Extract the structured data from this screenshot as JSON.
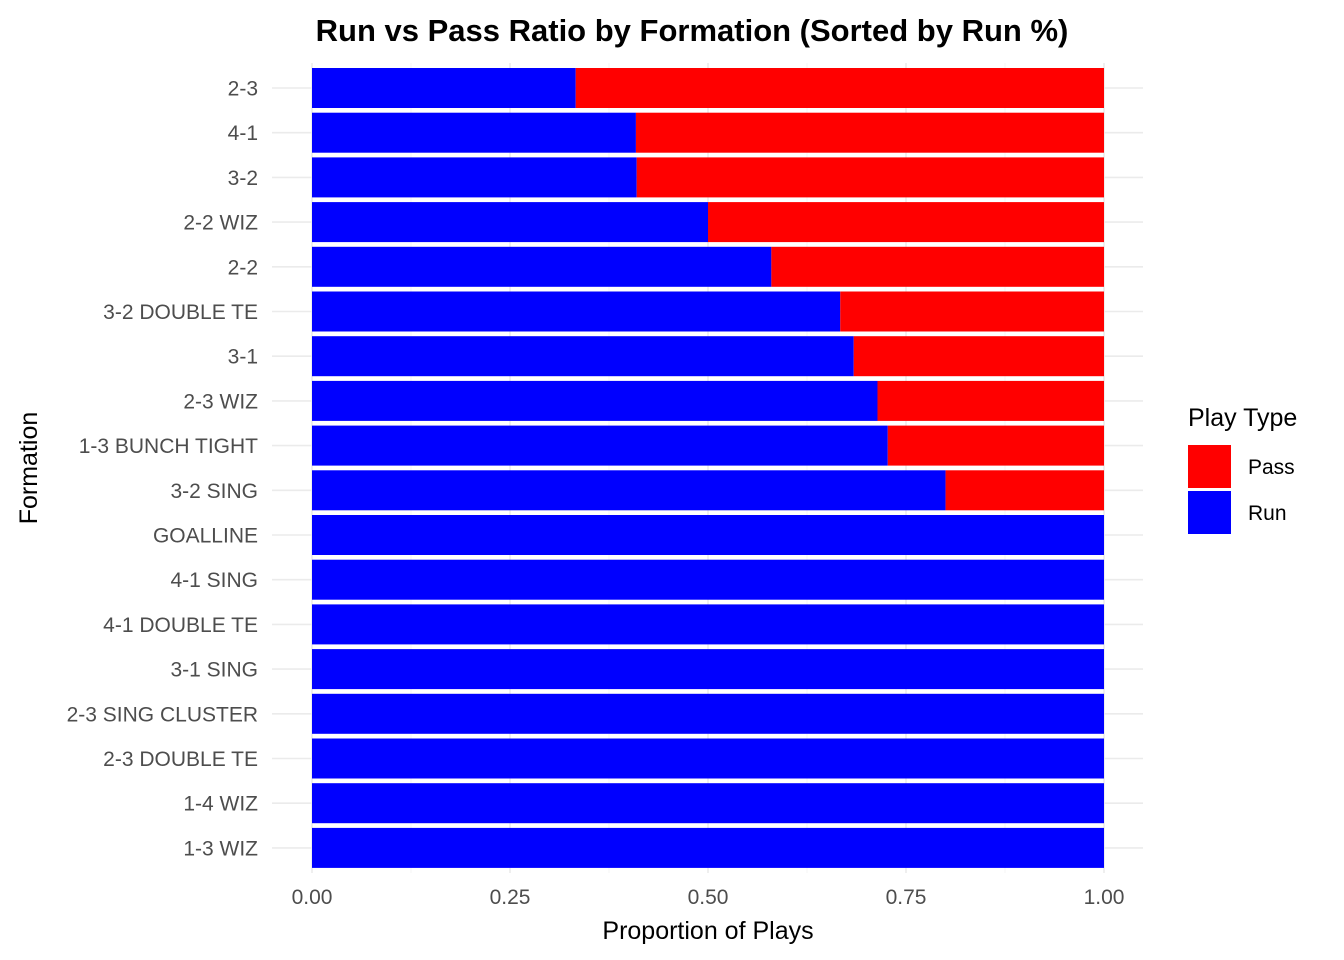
{
  "chart_data": {
    "type": "bar",
    "orientation": "horizontal",
    "stacked": "fill",
    "title": "Run vs Pass Ratio by Formation (Sorted by Run %)",
    "xlabel": "Proportion of Plays",
    "ylabel": "Formation",
    "xlim": [
      0,
      1
    ],
    "xticks": [
      "0.00",
      "0.25",
      "0.50",
      "0.75",
      "1.00"
    ],
    "grid": true,
    "legend": {
      "title": "Play Type",
      "position": "right"
    },
    "categories": [
      "2-3",
      "4-1",
      "3-2",
      "2-2 WIZ",
      "2-2",
      "3-2 DOUBLE TE",
      "3-1",
      "2-3 WIZ",
      "1-3 BUNCH TIGHT",
      "3-2 SING",
      "GOALLINE",
      "4-1 SING",
      "4-1 DOUBLE TE",
      "3-1 SING",
      "2-3 SING CLUSTER",
      "2-3 DOUBLE TE",
      "1-4 WIZ",
      "1-3 WIZ"
    ],
    "series": [
      {
        "name": "Run",
        "color": "#0000ff",
        "values": [
          0.333,
          0.409,
          0.41,
          0.5,
          0.58,
          0.667,
          0.684,
          0.714,
          0.727,
          0.8,
          1,
          1,
          1,
          1,
          1,
          1,
          1,
          1
        ]
      },
      {
        "name": "Pass",
        "color": "#ff0000",
        "values": [
          0.667,
          0.591,
          0.59,
          0.5,
          0.42,
          0.333,
          0.316,
          0.286,
          0.273,
          0.2,
          0,
          0,
          0,
          0,
          0,
          0,
          0,
          0
        ]
      }
    ],
    "legend_order": [
      "Pass",
      "Run"
    ]
  }
}
